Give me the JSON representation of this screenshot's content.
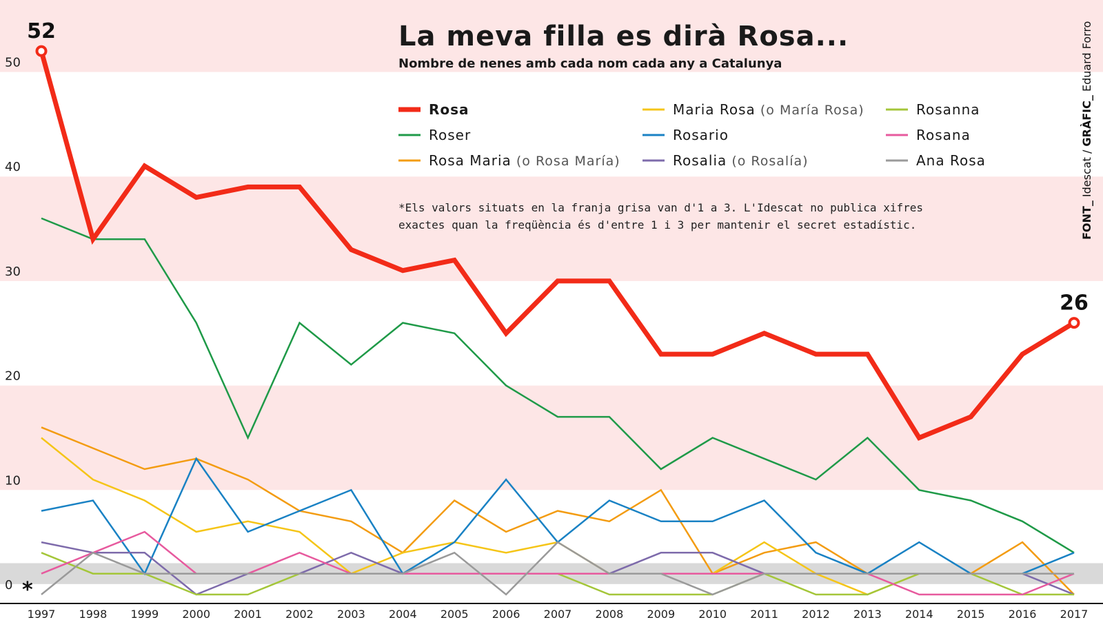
{
  "chart_data": {
    "type": "line",
    "title": "La meva filla es dirà Rosa...",
    "subtitle": "Nombre de nenes amb cada nom cada any a Catalunya",
    "note": [
      "*Els valors situats en la franja grisa van d'1 a 3. L'Idescat no publica xifres",
      "exactes quan la freqüència és d'entre 1 i 3 per mantenir el secret estadístic."
    ],
    "source_prefix": "FONT_",
    "source_name": " Idescat / ",
    "credit_prefix": "GRÀFIC_",
    "credit_name": " Eduard Forro",
    "x": [
      "1997",
      "1998",
      "1999",
      "2000",
      "2001",
      "2002",
      "2003",
      "2004",
      "2005",
      "2006",
      "2007",
      "2008",
      "2009",
      "2010",
      "2011",
      "2012",
      "2013",
      "2014",
      "2015",
      "2016",
      "2017"
    ],
    "ylim": [
      0,
      58
    ],
    "yticks": [
      0,
      10,
      20,
      30,
      40,
      50
    ],
    "band_label": "*",
    "band_range": [
      1,
      3
    ],
    "start_label": "52",
    "end_label": "26",
    "series": [
      {
        "name": "Roser",
        "color": "#1f9a48",
        "values": [
          36,
          34,
          34,
          26,
          15,
          26,
          22,
          26,
          25,
          20,
          17,
          17,
          12,
          15,
          13,
          11,
          15,
          10,
          9,
          7,
          4
        ]
      },
      {
        "name": "Rosa Maria",
        "name_note": "(o Rosa María)",
        "color": "#f39c12",
        "values": [
          16,
          14,
          12,
          13,
          11,
          8,
          7,
          4,
          9,
          6,
          8,
          7,
          10,
          2,
          4,
          5,
          2,
          2,
          2,
          5,
          0
        ]
      },
      {
        "name": "Maria Rosa",
        "name_note": "(o María Rosa)",
        "color": "#f5c518",
        "values": [
          15,
          11,
          9,
          6,
          7,
          6,
          2,
          4,
          5,
          4,
          5,
          2,
          2,
          2,
          5,
          2,
          0,
          2,
          2,
          2,
          2
        ]
      },
      {
        "name": "Rosario",
        "color": "#1a82c4",
        "values": [
          8,
          9,
          2,
          13,
          6,
          8,
          10,
          2,
          5,
          11,
          5,
          9,
          7,
          7,
          9,
          4,
          2,
          5,
          2,
          2,
          4
        ]
      },
      {
        "name": "Rosalia",
        "name_note": "(o Rosalía)",
        "color": "#7e6bab",
        "values": [
          5,
          4,
          4,
          0,
          2,
          2,
          4,
          2,
          2,
          2,
          2,
          2,
          4,
          4,
          2,
          2,
          2,
          2,
          2,
          2,
          0
        ]
      },
      {
        "name": "Rosanna",
        "color": "#a4c639",
        "values": [
          4,
          2,
          2,
          0,
          0,
          2,
          2,
          2,
          2,
          2,
          2,
          0,
          0,
          0,
          2,
          0,
          0,
          2,
          2,
          0,
          0
        ]
      },
      {
        "name": "Rosana",
        "color": "#e75a9e",
        "values": [
          2,
          4,
          6,
          2,
          2,
          4,
          2,
          2,
          2,
          2,
          2,
          2,
          2,
          2,
          2,
          2,
          2,
          0,
          0,
          0,
          2
        ]
      },
      {
        "name": "Ana Rosa",
        "color": "#9a9a9a",
        "values": [
          0,
          4,
          2,
          2,
          2,
          2,
          2,
          2,
          4,
          0,
          5,
          2,
          2,
          0,
          2,
          2,
          2,
          2,
          2,
          2,
          2
        ]
      },
      {
        "name": "Rosa",
        "color": "#f22b18",
        "values": [
          52,
          34,
          41,
          38,
          39,
          39,
          33,
          31,
          32,
          25,
          30,
          30,
          23,
          23,
          25,
          23,
          23,
          15,
          17,
          23,
          26
        ]
      }
    ],
    "legend_order": [
      "Rosa",
      "Roser",
      "Rosa Maria",
      "Maria Rosa",
      "Rosario",
      "Rosalia",
      "Rosanna",
      "Rosana",
      "Ana Rosa"
    ],
    "highlight": "Rosa",
    "band_colors": [
      "#fde6e6",
      "#ffffff"
    ],
    "grey_band_color": "#d9d9d9"
  }
}
